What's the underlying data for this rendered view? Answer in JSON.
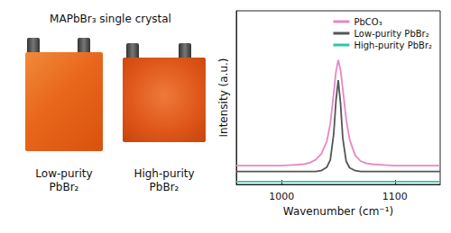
{
  "chart_data": {
    "type": "line",
    "xlabel": "Wavenumber (cm⁻¹)",
    "ylabel": "Intensity (a.u.)",
    "annotations": [
      "MAPbBr₃ single crystal",
      "Low-purity PbBr₂",
      "High-purity PbBr₂"
    ],
    "x": [
      960,
      970,
      980,
      990,
      1000,
      1010,
      1020,
      1025,
      1030,
      1035,
      1040,
      1043,
      1046,
      1048,
      1050,
      1052,
      1054,
      1057,
      1060,
      1065,
      1070,
      1075,
      1080,
      1090,
      1100,
      1110,
      1120,
      1130,
      1140
    ],
    "series": [
      {
        "name": "PbCO₃",
        "color": "#e986c4",
        "values": [
          1.3,
          1.3,
          1.3,
          1.3,
          1.3,
          1.35,
          1.4,
          1.5,
          1.7,
          2.1,
          3.0,
          4.2,
          6.3,
          7.8,
          8.6,
          7.9,
          6.6,
          4.5,
          3.1,
          2.0,
          1.6,
          1.45,
          1.4,
          1.35,
          1.3,
          1.3,
          1.3,
          1.3,
          1.3
        ]
      },
      {
        "name": "Low-purity PbBr₂",
        "color": "#555555",
        "values": [
          0.9,
          0.9,
          0.9,
          0.9,
          0.9,
          0.9,
          0.9,
          0.9,
          0.9,
          0.95,
          1.2,
          1.7,
          3.5,
          5.8,
          7.2,
          5.6,
          3.2,
          1.6,
          1.15,
          0.95,
          0.9,
          0.9,
          0.9,
          0.9,
          0.9,
          0.9,
          0.9,
          0.9,
          0.9
        ]
      },
      {
        "name": "High-purity PbBr₂",
        "color": "#2cc7a6",
        "values": [
          0.2,
          0.2,
          0.2,
          0.2,
          0.2,
          0.2,
          0.2,
          0.2,
          0.2,
          0.2,
          0.2,
          0.2,
          0.2,
          0.2,
          0.2,
          0.2,
          0.2,
          0.2,
          0.2,
          0.2,
          0.2,
          0.2,
          0.2,
          0.2,
          0.2,
          0.2,
          0.2,
          0.2,
          0.2
        ]
      }
    ],
    "xlim": [
      960,
      1140
    ],
    "xticks": [
      1000,
      1100
    ],
    "ylim": [
      0,
      12
    ],
    "tick_labels": "x",
    "grid": false,
    "legend": "upper right"
  }
}
